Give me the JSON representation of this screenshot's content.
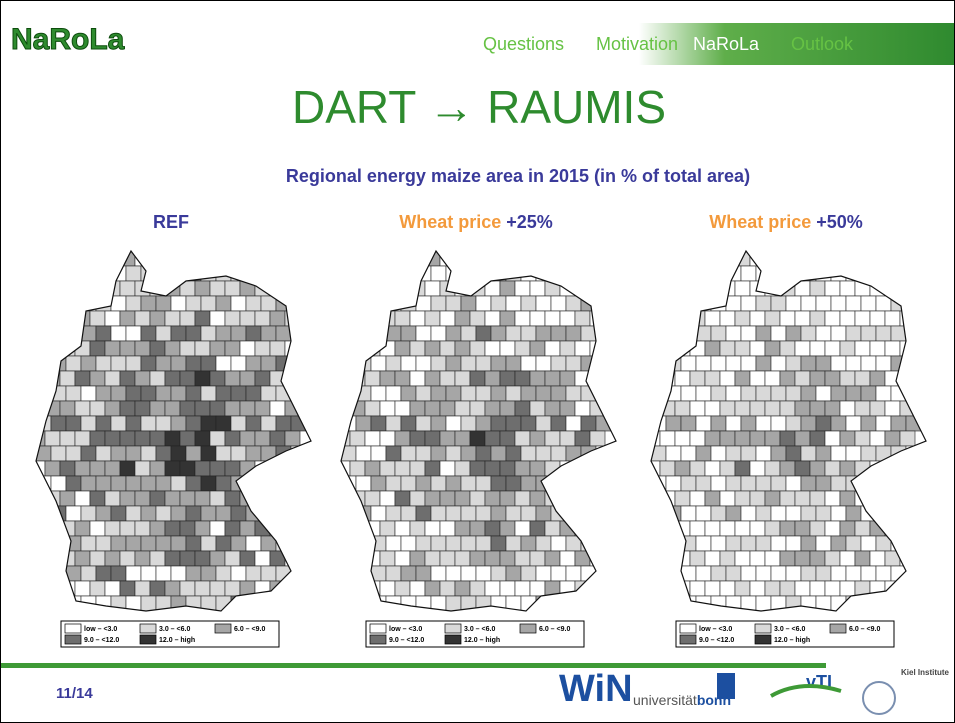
{
  "header": {
    "logo": "NaRoLa",
    "nav": [
      "Questions",
      "Motivation",
      "NaRoLa",
      "Outlook"
    ],
    "active_nav": 2
  },
  "title": "DART → RAUMIS",
  "subtitle": "Regional energy maize area in 2015 (in % of total area)",
  "maps": [
    {
      "label": "REF"
    },
    {
      "label": "Wheat price",
      "change": "+25%"
    },
    {
      "label": "Wheat price",
      "change": "+50%"
    }
  ],
  "legend": [
    "low – <3.0",
    "3.0 – <6.0",
    "6.0 – <9.0",
    "9.0 – <12.0",
    "12.0 – high"
  ],
  "footer": {
    "page": "11/14",
    "logo_win": "WiN",
    "logo_bonn_a": "universität",
    "logo_bonn_b": "bonn",
    "logo_vti": "vTI",
    "logo_kiel": "Kiel Institute"
  }
}
